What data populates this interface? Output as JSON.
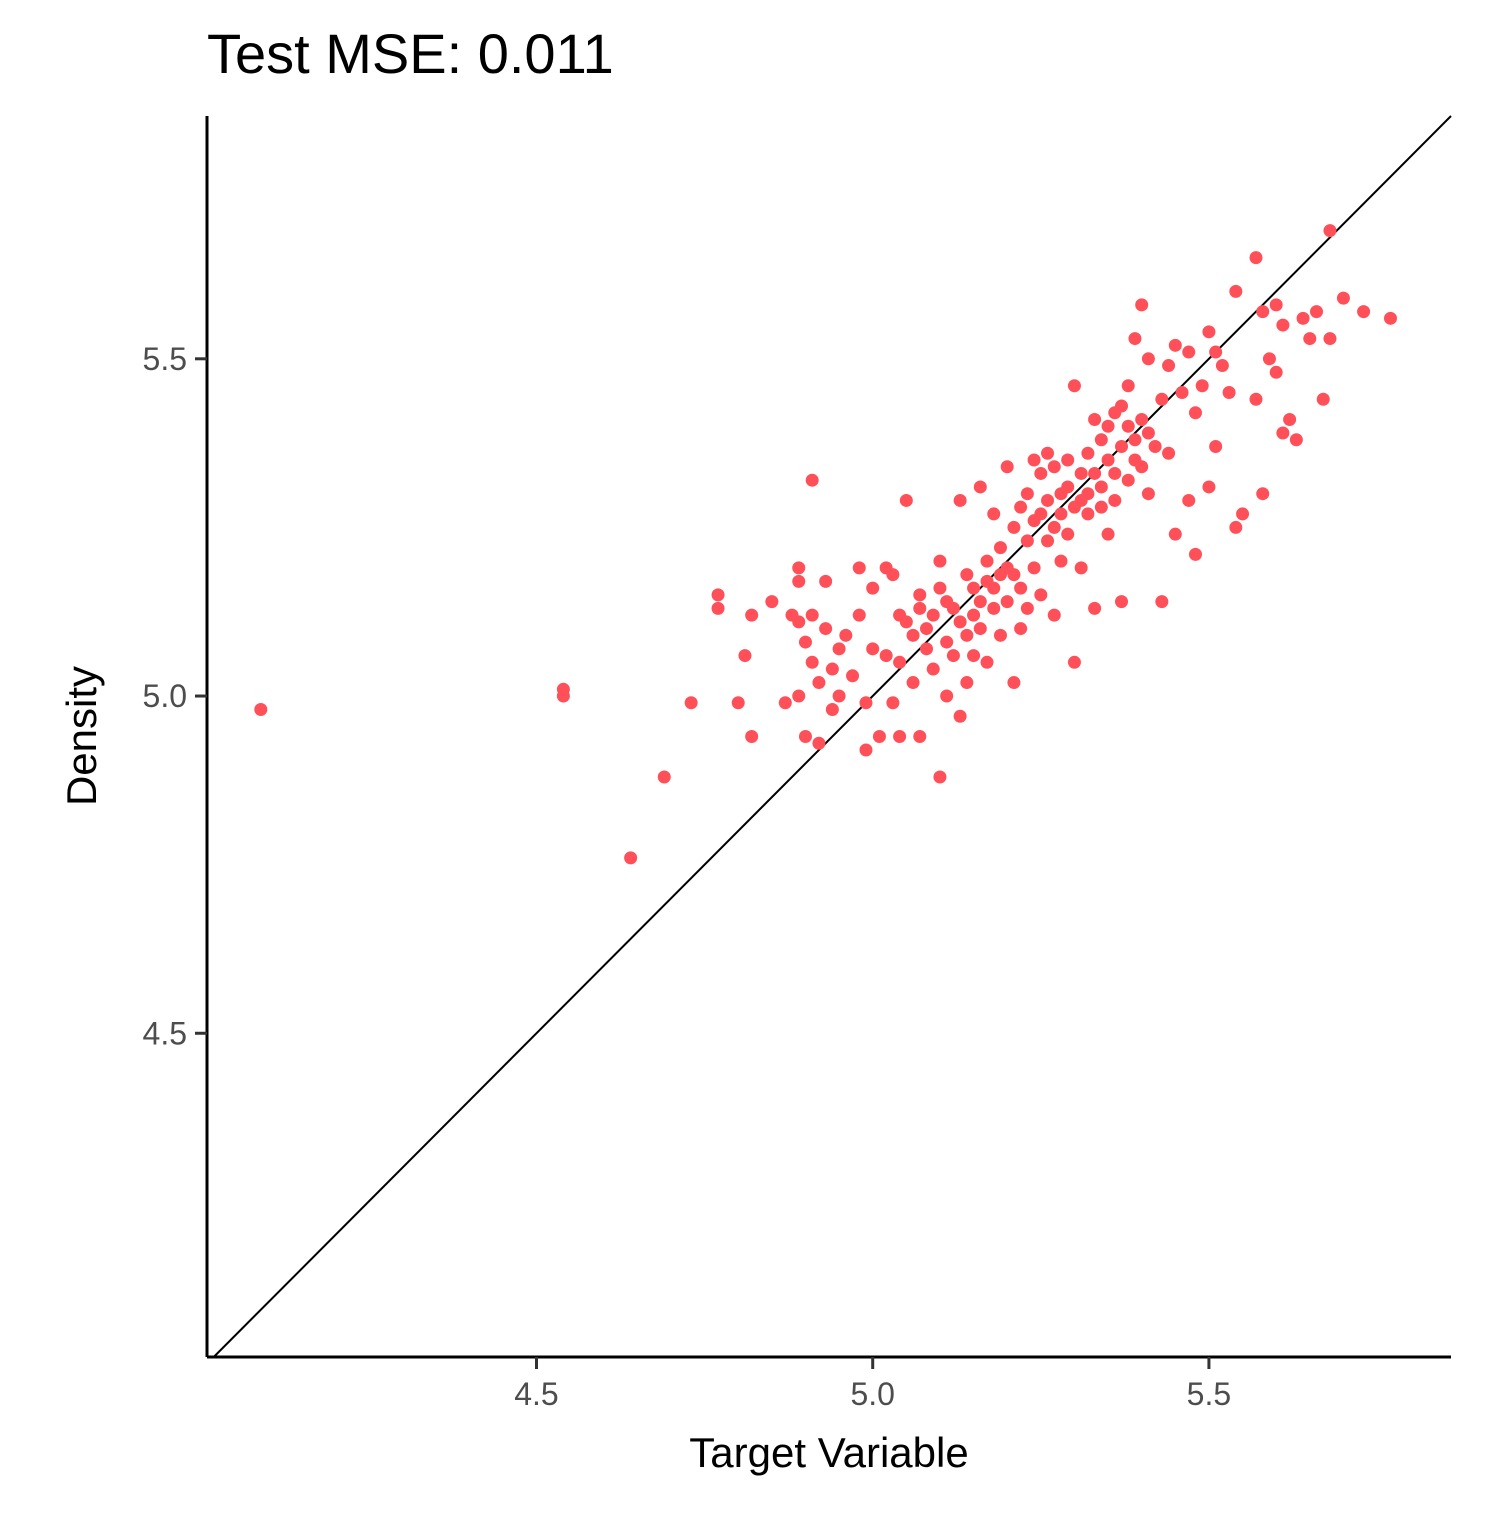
{
  "chart_data": {
    "type": "scatter",
    "title": "Test MSE: 0.011",
    "xlabel": "Target Variable",
    "ylabel": "Density",
    "xlim": [
      4.01,
      5.86
    ],
    "ylim": [
      4.02,
      5.86
    ],
    "x_ticks": [
      4.5,
      5.0,
      5.5
    ],
    "x_tick_labels": [
      "4.5",
      "5.0",
      "5.5"
    ],
    "y_ticks": [
      4.5,
      5.0,
      5.5
    ],
    "y_tick_labels": [
      "4.5",
      "5.0",
      "5.5"
    ],
    "grid": false,
    "reference_line": {
      "type": "identity",
      "color": "#000000"
    },
    "point_color": "#ff5059",
    "series": [
      {
        "points": [
          [
            4.09,
            4.98
          ],
          [
            4.54,
            5.0
          ],
          [
            4.54,
            5.01
          ],
          [
            4.64,
            4.76
          ],
          [
            4.69,
            4.88
          ],
          [
            4.73,
            4.99
          ],
          [
            4.77,
            5.13
          ],
          [
            4.77,
            5.15
          ],
          [
            4.8,
            4.99
          ],
          [
            4.81,
            5.06
          ],
          [
            4.82,
            4.94
          ],
          [
            4.82,
            5.12
          ],
          [
            4.85,
            5.14
          ],
          [
            4.87,
            4.99
          ],
          [
            4.88,
            5.12
          ],
          [
            4.89,
            5.11
          ],
          [
            4.89,
            5.17
          ],
          [
            4.89,
            5.19
          ],
          [
            4.89,
            5.0
          ],
          [
            4.9,
            4.94
          ],
          [
            4.9,
            5.08
          ],
          [
            4.91,
            5.32
          ],
          [
            4.91,
            5.12
          ],
          [
            4.91,
            5.05
          ],
          [
            4.92,
            5.02
          ],
          [
            4.92,
            4.93
          ],
          [
            4.93,
            5.17
          ],
          [
            4.93,
            5.1
          ],
          [
            4.94,
            5.04
          ],
          [
            4.94,
            4.98
          ],
          [
            4.95,
            5.07
          ],
          [
            4.95,
            5.0
          ],
          [
            4.96,
            5.09
          ],
          [
            4.97,
            5.03
          ],
          [
            4.98,
            5.19
          ],
          [
            4.98,
            5.12
          ],
          [
            4.99,
            4.99
          ],
          [
            4.99,
            4.92
          ],
          [
            5.0,
            5.16
          ],
          [
            5.0,
            5.07
          ],
          [
            5.01,
            4.94
          ],
          [
            5.02,
            5.19
          ],
          [
            5.02,
            5.06
          ],
          [
            5.03,
            5.18
          ],
          [
            5.03,
            4.99
          ],
          [
            5.04,
            5.12
          ],
          [
            5.04,
            5.05
          ],
          [
            5.04,
            4.94
          ],
          [
            5.05,
            5.29
          ],
          [
            5.05,
            5.11
          ],
          [
            5.06,
            5.09
          ],
          [
            5.06,
            5.02
          ],
          [
            5.07,
            5.15
          ],
          [
            5.07,
            5.13
          ],
          [
            5.07,
            4.94
          ],
          [
            5.08,
            5.1
          ],
          [
            5.08,
            5.07
          ],
          [
            5.09,
            5.12
          ],
          [
            5.09,
            5.04
          ],
          [
            5.1,
            5.2
          ],
          [
            5.1,
            5.16
          ],
          [
            5.1,
            4.88
          ],
          [
            5.11,
            5.14
          ],
          [
            5.11,
            5.08
          ],
          [
            5.11,
            5.0
          ],
          [
            5.12,
            5.13
          ],
          [
            5.12,
            5.06
          ],
          [
            5.13,
            5.29
          ],
          [
            5.13,
            5.11
          ],
          [
            5.13,
            4.97
          ],
          [
            5.14,
            5.18
          ],
          [
            5.14,
            5.09
          ],
          [
            5.14,
            5.02
          ],
          [
            5.15,
            5.16
          ],
          [
            5.15,
            5.12
          ],
          [
            5.15,
            5.06
          ],
          [
            5.16,
            5.31
          ],
          [
            5.16,
            5.14
          ],
          [
            5.16,
            5.1
          ],
          [
            5.17,
            5.2
          ],
          [
            5.17,
            5.17
          ],
          [
            5.17,
            5.05
          ],
          [
            5.18,
            5.27
          ],
          [
            5.18,
            5.16
          ],
          [
            5.18,
            5.13
          ],
          [
            5.19,
            5.22
          ],
          [
            5.19,
            5.18
          ],
          [
            5.19,
            5.09
          ],
          [
            5.2,
            5.34
          ],
          [
            5.2,
            5.19
          ],
          [
            5.2,
            5.14
          ],
          [
            5.21,
            5.25
          ],
          [
            5.21,
            5.18
          ],
          [
            5.21,
            5.02
          ],
          [
            5.22,
            5.28
          ],
          [
            5.22,
            5.16
          ],
          [
            5.22,
            5.1
          ],
          [
            5.23,
            5.3
          ],
          [
            5.23,
            5.23
          ],
          [
            5.23,
            5.13
          ],
          [
            5.24,
            5.35
          ],
          [
            5.24,
            5.26
          ],
          [
            5.24,
            5.19
          ],
          [
            5.25,
            5.33
          ],
          [
            5.25,
            5.27
          ],
          [
            5.25,
            5.15
          ],
          [
            5.26,
            5.36
          ],
          [
            5.26,
            5.29
          ],
          [
            5.26,
            5.23
          ],
          [
            5.27,
            5.34
          ],
          [
            5.27,
            5.25
          ],
          [
            5.27,
            5.12
          ],
          [
            5.28,
            5.3
          ],
          [
            5.28,
            5.27
          ],
          [
            5.28,
            5.2
          ],
          [
            5.29,
            5.35
          ],
          [
            5.29,
            5.31
          ],
          [
            5.29,
            5.24
          ],
          [
            5.3,
            5.46
          ],
          [
            5.3,
            5.28
          ],
          [
            5.3,
            5.05
          ],
          [
            5.31,
            5.33
          ],
          [
            5.31,
            5.29
          ],
          [
            5.31,
            5.19
          ],
          [
            5.32,
            5.36
          ],
          [
            5.32,
            5.3
          ],
          [
            5.32,
            5.27
          ],
          [
            5.33,
            5.41
          ],
          [
            5.33,
            5.33
          ],
          [
            5.33,
            5.13
          ],
          [
            5.34,
            5.38
          ],
          [
            5.34,
            5.31
          ],
          [
            5.34,
            5.28
          ],
          [
            5.35,
            5.4
          ],
          [
            5.35,
            5.35
          ],
          [
            5.35,
            5.24
          ],
          [
            5.36,
            5.42
          ],
          [
            5.36,
            5.33
          ],
          [
            5.36,
            5.29
          ],
          [
            5.37,
            5.43
          ],
          [
            5.37,
            5.37
          ],
          [
            5.37,
            5.14
          ],
          [
            5.38,
            5.46
          ],
          [
            5.38,
            5.4
          ],
          [
            5.38,
            5.32
          ],
          [
            5.39,
            5.53
          ],
          [
            5.39,
            5.38
          ],
          [
            5.39,
            5.35
          ],
          [
            5.4,
            5.58
          ],
          [
            5.4,
            5.41
          ],
          [
            5.4,
            5.34
          ],
          [
            5.41,
            5.5
          ],
          [
            5.41,
            5.39
          ],
          [
            5.41,
            5.3
          ],
          [
            5.42,
            5.37
          ],
          [
            5.43,
            5.44
          ],
          [
            5.43,
            5.14
          ],
          [
            5.44,
            5.49
          ],
          [
            5.44,
            5.36
          ],
          [
            5.45,
            5.52
          ],
          [
            5.45,
            5.24
          ],
          [
            5.46,
            5.45
          ],
          [
            5.47,
            5.51
          ],
          [
            5.47,
            5.29
          ],
          [
            5.48,
            5.42
          ],
          [
            5.48,
            5.21
          ],
          [
            5.49,
            5.46
          ],
          [
            5.5,
            5.31
          ],
          [
            5.5,
            5.54
          ],
          [
            5.51,
            5.37
          ],
          [
            5.51,
            5.51
          ],
          [
            5.52,
            5.49
          ],
          [
            5.53,
            5.45
          ],
          [
            5.54,
            5.6
          ],
          [
            5.54,
            5.25
          ],
          [
            5.55,
            5.27
          ],
          [
            5.57,
            5.65
          ],
          [
            5.57,
            5.44
          ],
          [
            5.58,
            5.3
          ],
          [
            5.58,
            5.57
          ],
          [
            5.59,
            5.5
          ],
          [
            5.6,
            5.58
          ],
          [
            5.6,
            5.48
          ],
          [
            5.61,
            5.55
          ],
          [
            5.61,
            5.39
          ],
          [
            5.62,
            5.41
          ],
          [
            5.63,
            5.38
          ],
          [
            5.64,
            5.56
          ],
          [
            5.65,
            5.53
          ],
          [
            5.66,
            5.57
          ],
          [
            5.67,
            5.44
          ],
          [
            5.68,
            5.69
          ],
          [
            5.68,
            5.53
          ],
          [
            5.7,
            5.59
          ],
          [
            5.73,
            5.57
          ],
          [
            5.77,
            5.56
          ]
        ]
      }
    ]
  }
}
